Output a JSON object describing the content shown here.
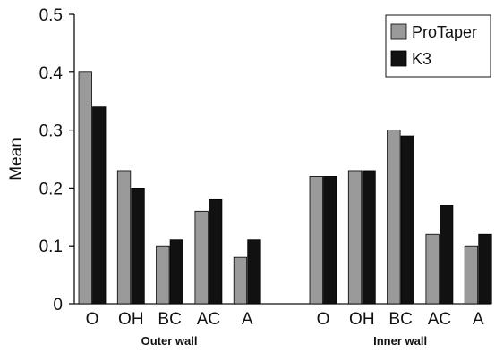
{
  "chart_data": {
    "type": "bar",
    "title": "",
    "xlabel": "",
    "ylabel": "Mean",
    "ylim": [
      0,
      0.5
    ],
    "yticks": [
      "0",
      "0.1",
      "0.2",
      "0.3",
      "0.4",
      "0.5"
    ],
    "grid": false,
    "legend_position": "top-right",
    "groups": [
      {
        "label": "Outer wall",
        "categories": [
          "O",
          "OH",
          "BC",
          "AC",
          "A"
        ],
        "series": [
          {
            "name": "ProTaper",
            "color": "#9a9a9a",
            "values": [
              0.4,
              0.23,
              0.1,
              0.16,
              0.08
            ]
          },
          {
            "name": "K3",
            "color": "#111111",
            "values": [
              0.34,
              0.2,
              0.11,
              0.18,
              0.11
            ]
          }
        ]
      },
      {
        "label": "Inner wall",
        "categories": [
          "O",
          "OH",
          "BC",
          "AC",
          "A"
        ],
        "series": [
          {
            "name": "ProTaper",
            "color": "#9a9a9a",
            "values": [
              0.22,
              0.23,
              0.3,
              0.12,
              0.1
            ]
          },
          {
            "name": "K3",
            "color": "#111111",
            "values": [
              0.22,
              0.23,
              0.29,
              0.17,
              0.12
            ]
          }
        ]
      }
    ],
    "legend": [
      {
        "name": "ProTaper",
        "color": "#9a9a9a"
      },
      {
        "name": "K3",
        "color": "#111111"
      }
    ]
  }
}
